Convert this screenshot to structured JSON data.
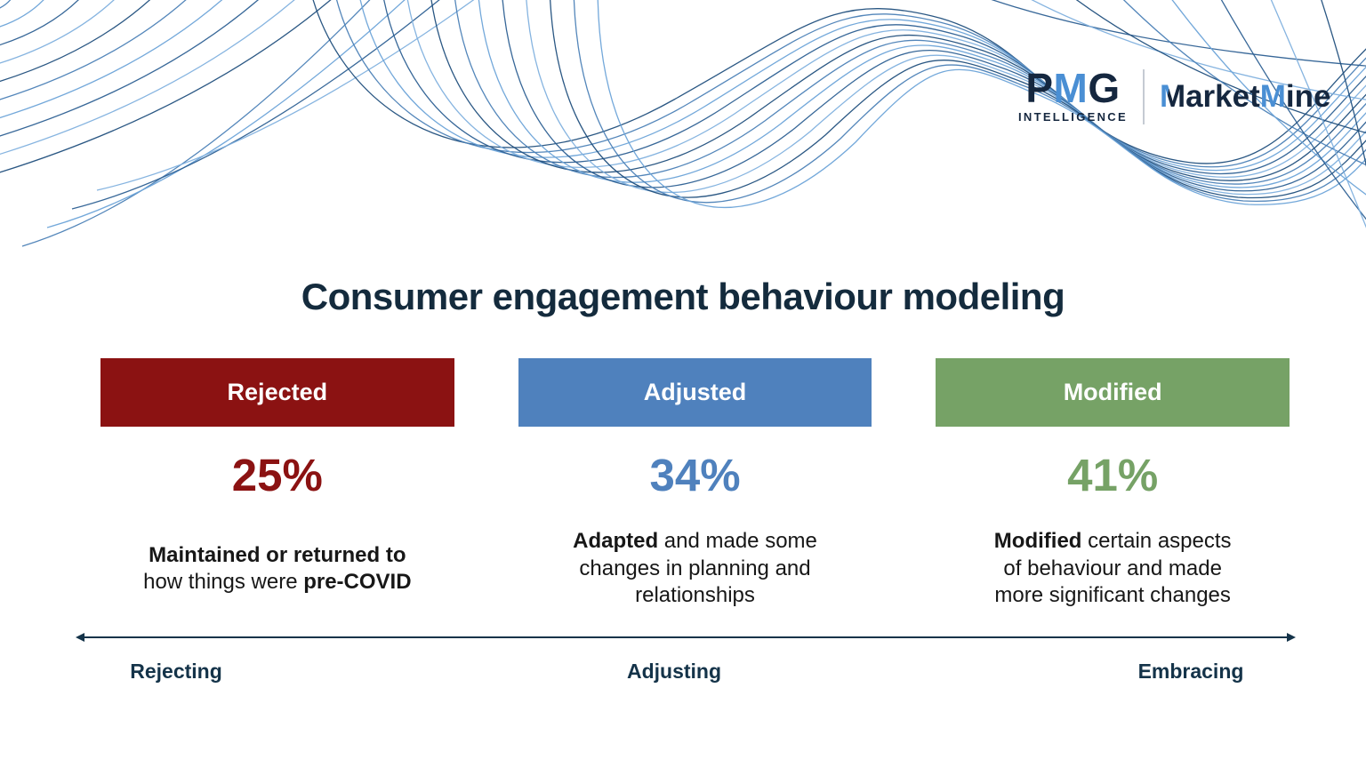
{
  "logo": {
    "pmg_letters": {
      "p": "P",
      "m": "M",
      "g": "G"
    },
    "pmg_subtitle": "INTELLIGENCE",
    "marketmine": {
      "m1": "M",
      "rest1": "arket",
      "m2": "M",
      "rest2": "ine"
    },
    "colors": {
      "navy": "#15273f",
      "blue": "#4a8fd4",
      "divider": "#c5cbd3"
    }
  },
  "title": "Consumer engagement behaviour modeling",
  "chart_data": {
    "type": "bar",
    "categories": [
      "Rejected",
      "Adjusted",
      "Modified"
    ],
    "values": [
      25,
      34,
      41
    ],
    "unit": "%",
    "title": "Consumer engagement behaviour modeling",
    "colors": [
      "#8b1212",
      "#4f81bd",
      "#76a266"
    ],
    "annotations": [
      "Maintained or returned to how things were pre-COVID",
      "Adapted and made some changes in planning and relationships",
      "Modified certain aspects of behaviour and made more significant changes"
    ],
    "axis": {
      "left_label": "Rejecting",
      "center_label": "Adjusting",
      "right_label": "Embracing"
    }
  },
  "columns": [
    {
      "header": "Rejected",
      "percent": "25%",
      "color": "#8b1212",
      "description_lines": [
        [
          {
            "t": "Maintained or returned to",
            "b": true
          }
        ],
        [
          {
            "t": "how things were ",
            "b": false
          },
          {
            "t": "pre-COVID",
            "b": true
          }
        ]
      ]
    },
    {
      "header": "Adjusted",
      "percent": "34%",
      "color": "#4f81bd",
      "description_lines": [
        [
          {
            "t": "Adapted",
            "b": true
          },
          {
            "t": " and made some",
            "b": false
          }
        ],
        [
          {
            "t": "changes in planning and",
            "b": false
          }
        ],
        [
          {
            "t": "relationships",
            "b": false
          }
        ]
      ]
    },
    {
      "header": "Modified",
      "percent": "41%",
      "color": "#76a266",
      "description_lines": [
        [
          {
            "t": "Modified",
            "b": true
          },
          {
            "t": " certain aspects",
            "b": false
          }
        ],
        [
          {
            "t": "of behaviour and made",
            "b": false
          }
        ],
        [
          {
            "t": "more significant changes",
            "b": false
          }
        ]
      ]
    }
  ],
  "spectrum": {
    "labels": {
      "left": "Rejecting",
      "center": "Adjusting",
      "right": "Embracing"
    },
    "arrow_color": "#143349"
  },
  "styles": {
    "title_color": "#142b3d",
    "body_text": "#171717",
    "bar_text": "#ffffff"
  },
  "decor": {
    "wave_palette": [
      "#4a80b6",
      "#6ba3d8",
      "#2c5f92",
      "#7fb0de",
      "#1f4e7c"
    ]
  }
}
